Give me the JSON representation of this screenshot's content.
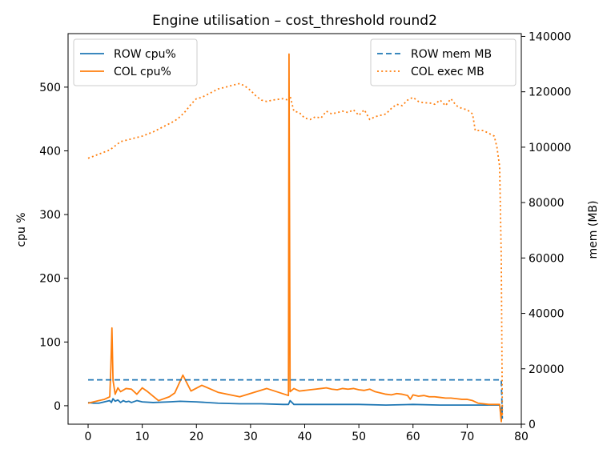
{
  "chart_data": {
    "type": "line",
    "title": "Engine utilisation – cost_threshold round2",
    "xlabel": "",
    "ylabel": "cpu %",
    "y2label": "mem (MB)",
    "xlim": [
      -3.7,
      80.0
    ],
    "ylim": [
      -29,
      584
    ],
    "y2lim": [
      0,
      141000
    ],
    "xticks": [
      0,
      10,
      20,
      30,
      40,
      50,
      60,
      70,
      80
    ],
    "yticks": [
      0,
      100,
      200,
      300,
      400,
      500
    ],
    "y2ticks": [
      0,
      20000,
      40000,
      60000,
      80000,
      100000,
      120000,
      140000
    ],
    "grid": false,
    "legend_left": {
      "position": "top-left",
      "entries": [
        "ROW cpu%",
        "COL cpu%"
      ]
    },
    "legend_right": {
      "position": "top-right",
      "entries": [
        "ROW mem MB",
        "COL exec MB"
      ]
    },
    "colors": {
      "row": "#1f77b4",
      "col": "#ff7f0e"
    },
    "series": [
      {
        "name": "ROW cpu%",
        "axis": "left",
        "style": "solid",
        "color": "#1f77b4",
        "x": [
          0,
          1,
          2,
          3,
          4,
          4.3,
          4.6,
          5,
          5.5,
          6,
          6.5,
          7,
          7.5,
          8,
          9,
          10,
          12,
          15,
          17,
          20,
          24,
          28,
          32,
          36,
          37,
          37.3,
          38,
          40,
          45,
          50,
          55,
          60,
          65,
          70,
          72,
          74,
          76,
          76.3,
          76.5
        ],
        "y": [
          5,
          4,
          4,
          6,
          8,
          5,
          11,
          7,
          9,
          5,
          8,
          6,
          7,
          5,
          8,
          6,
          5,
          6,
          7,
          6,
          4,
          3,
          3,
          2,
          2,
          8,
          2,
          2,
          2,
          2,
          1,
          2,
          1,
          1,
          1,
          1,
          1,
          -10,
          1
        ]
      },
      {
        "name": "COL cpu%",
        "axis": "left",
        "style": "solid",
        "color": "#ff7f0e",
        "x": [
          0,
          1,
          2,
          3,
          4,
          4.2,
          4.4,
          4.6,
          5,
          5.5,
          6,
          7,
          8,
          9,
          10,
          11,
          13,
          15,
          16,
          17.5,
          19,
          21,
          24,
          28,
          33,
          37,
          37.1,
          37.2,
          37.3,
          38,
          39,
          40,
          41,
          42,
          43,
          44,
          45,
          46,
          47,
          48,
          49,
          50,
          51,
          52,
          53,
          54,
          55,
          56,
          57,
          58,
          59,
          59.5,
          60,
          61,
          62,
          63,
          64,
          65,
          66,
          67,
          68,
          69,
          70,
          71,
          72,
          73,
          74,
          75,
          76,
          76.3,
          76.5
        ],
        "y": [
          4,
          6,
          8,
          10,
          14,
          60,
          122,
          40,
          18,
          28,
          22,
          27,
          26,
          18,
          28,
          22,
          8,
          14,
          20,
          48,
          23,
          32,
          21,
          14,
          27,
          16,
          552,
          300,
          22,
          27,
          23,
          24,
          25,
          26,
          27,
          28,
          26,
          25,
          27,
          26,
          27,
          25,
          24,
          26,
          22,
          20,
          18,
          17,
          19,
          18,
          16,
          10,
          17,
          15,
          16,
          14,
          14,
          13,
          12,
          12,
          11,
          10,
          10,
          8,
          4,
          3,
          2,
          2,
          2,
          -25,
          0
        ]
      },
      {
        "name": "ROW mem MB",
        "axis": "right",
        "style": "dashed",
        "color": "#1f77b4",
        "x": [
          0,
          76.3,
          76.5
        ],
        "y": [
          16000,
          16000,
          2000
        ]
      },
      {
        "name": "COL exec MB",
        "axis": "right",
        "style": "dotted",
        "color": "#ff7f0e",
        "x": [
          0,
          2,
          4,
          5,
          6,
          8,
          10,
          12,
          14,
          16,
          17,
          18,
          19,
          20,
          21,
          22,
          23,
          24,
          25,
          26,
          27,
          28,
          29,
          30,
          31,
          32,
          33,
          34,
          36,
          37,
          37.3,
          38,
          39,
          40,
          41,
          42,
          43,
          44,
          45,
          46,
          47,
          48,
          49,
          50,
          51,
          52,
          53,
          54,
          55,
          56,
          57,
          58,
          59,
          60,
          61,
          62,
          63,
          64,
          65,
          66,
          67,
          68,
          69,
          70,
          71,
          71.5,
          72,
          73,
          74,
          75,
          75.5,
          76,
          76.3,
          76.5
        ],
        "y": [
          96000,
          97500,
          99000,
          100500,
          102000,
          103000,
          104000,
          105500,
          107500,
          109500,
          111000,
          113000,
          115500,
          117500,
          118000,
          119000,
          120000,
          121000,
          121500,
          122000,
          122500,
          123000,
          122000,
          120500,
          118500,
          117000,
          116500,
          117000,
          117500,
          117000,
          118500,
          113000,
          112500,
          110500,
          110000,
          111000,
          110500,
          113000,
          112000,
          112500,
          113000,
          112500,
          113500,
          111500,
          113500,
          110000,
          111000,
          111500,
          112000,
          114000,
          115500,
          115000,
          117000,
          118000,
          116500,
          116000,
          116000,
          115500,
          117000,
          115000,
          117500,
          115000,
          114000,
          113500,
          112000,
          106000,
          106000,
          106000,
          105000,
          104000,
          100000,
          93000,
          60000,
          3000
        ]
      }
    ]
  }
}
